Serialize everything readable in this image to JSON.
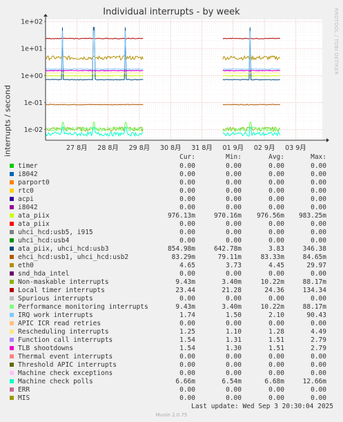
{
  "title": "Individual interrupts - by week",
  "watermark": "RRDTOOL / TOBI OETIKER",
  "footer": {
    "last_update": "Last update: Wed Sep  3 20:30:04 2025",
    "version": "Munin 2.0.75"
  },
  "legend_headers": {
    "cur": "Cur:",
    "min": "Min:",
    "avg": "Avg:",
    "max": "Max:"
  },
  "chart_data": {
    "type": "line",
    "title": "Individual interrupts - by week",
    "ylabel": "interrupts / second",
    "yscale": "log",
    "ylim": [
      0.004,
      120
    ],
    "y_ticks": [
      {
        "value": 100,
        "label": "1e+02"
      },
      {
        "value": 10,
        "label": "1e+01"
      },
      {
        "value": 1,
        "label": "1e+00"
      },
      {
        "value": 0.1,
        "label": "1e-01"
      },
      {
        "value": 0.01,
        "label": "1e-02"
      }
    ],
    "x_domain_days": [
      0,
      7.5
    ],
    "x_ticks": [
      {
        "day": 1,
        "label": "27 8月"
      },
      {
        "day": 2,
        "label": "28 8月"
      },
      {
        "day": 3,
        "label": "29 8月"
      },
      {
        "day": 4,
        "label": "30 8月"
      },
      {
        "day": 5,
        "label": "31 8月"
      },
      {
        "day": 6,
        "label": "01 9月"
      },
      {
        "day": 7,
        "label": "02 9月"
      },
      {
        "day": 8,
        "label": "03 9月"
      }
    ],
    "data_gaps": [
      [
        3.12,
        5.65
      ]
    ],
    "grid": true,
    "series": [
      {
        "name": "timer",
        "color": "#00cc00",
        "cur": "0.00",
        "min": "0.00",
        "avg": "0.00",
        "max": "0.00"
      },
      {
        "name": "i8042",
        "color": "#0066b3",
        "cur": "0.00",
        "min": "0.00",
        "avg": "0.00",
        "max": "0.00"
      },
      {
        "name": "parport0",
        "color": "#ff8000",
        "cur": "0.00",
        "min": "0.00",
        "avg": "0.00",
        "max": "0.00"
      },
      {
        "name": "rtc0",
        "color": "#ffcc00",
        "cur": "0.00",
        "min": "0.00",
        "avg": "0.00",
        "max": "0.00"
      },
      {
        "name": "acpi",
        "color": "#330099",
        "cur": "0.00",
        "min": "0.00",
        "avg": "0.00",
        "max": "0.00"
      },
      {
        "name": "i8042",
        "color": "#990099",
        "cur": "0.00",
        "min": "0.00",
        "avg": "0.00",
        "max": "0.00"
      },
      {
        "name": "ata_piix",
        "color": "#ccff00",
        "cur": "976.13m",
        "min": "970.16m",
        "avg": "976.56m",
        "max": "983.25m",
        "level": 0.976
      },
      {
        "name": "ata_piix",
        "color": "#ff0000",
        "cur": "0.00",
        "min": "0.00",
        "avg": "0.00",
        "max": "0.00"
      },
      {
        "name": "uhci_hcd:usb5, i915",
        "color": "#808080",
        "cur": "0.00",
        "min": "0.00",
        "avg": "0.00",
        "max": "0.00"
      },
      {
        "name": "uhci_hcd:usb4",
        "color": "#008f00",
        "cur": "0.00",
        "min": "0.00",
        "avg": "0.00",
        "max": "0.00"
      },
      {
        "name": "ata_piix, uhci_hcd:usb3",
        "color": "#00487d",
        "cur": "854.98m",
        "min": "642.78m",
        "avg": "3.83",
        "max": "346.38",
        "level": 0.7,
        "spike": 60
      },
      {
        "name": "ehci_hcd:usb1, uhci_hcd:usb2",
        "color": "#b35a00",
        "cur": "83.29m",
        "min": "79.11m",
        "avg": "83.33m",
        "max": "84.65m",
        "level": 0.0833
      },
      {
        "name": "eth0",
        "color": "#b38f00",
        "cur": "4.65",
        "min": "3.73",
        "avg": "4.45",
        "max": "29.97",
        "level": 4.45
      },
      {
        "name": "snd_hda_intel",
        "color": "#6b006b",
        "cur": "0.00",
        "min": "0.00",
        "avg": "0.00",
        "max": "0.00"
      },
      {
        "name": "Non-maskable interrupts",
        "color": "#8fb300",
        "cur": "9.43m",
        "min": "3.40m",
        "avg": "10.22m",
        "max": "88.17m",
        "level": 0.0102
      },
      {
        "name": "Local timer interrupts",
        "color": "#b30000",
        "cur": "23.44",
        "min": "21.28",
        "avg": "24.36",
        "max": "134.34",
        "level": 23.4
      },
      {
        "name": "Spurious interrupts",
        "color": "#bebebe",
        "cur": "0.00",
        "min": "0.00",
        "avg": "0.00",
        "max": "0.00"
      },
      {
        "name": "Performance monitoring interrupts",
        "color": "#80ff80",
        "cur": "9.43m",
        "min": "3.40m",
        "avg": "10.22m",
        "max": "88.17m",
        "level": 0.0102
      },
      {
        "name": "IRQ work interrupts",
        "color": "#80c9ff",
        "cur": "1.74",
        "min": "1.50",
        "avg": "2.10",
        "max": "90.43",
        "level": 1.74,
        "spike": 45
      },
      {
        "name": "APIC ICR read retries",
        "color": "#ffc080",
        "cur": "0.00",
        "min": "0.00",
        "avg": "0.00",
        "max": "0.00"
      },
      {
        "name": "Rescheduling interrupts",
        "color": "#ffe680",
        "cur": "1.25",
        "min": "1.10",
        "avg": "1.28",
        "max": "4.49",
        "level": 1.25
      },
      {
        "name": "Function call interrupts",
        "color": "#aa80ff",
        "cur": "1.54",
        "min": "1.31",
        "avg": "1.51",
        "max": "2.79",
        "level": 1.54
      },
      {
        "name": "TLB shootdowns",
        "color": "#ee00cc",
        "cur": "1.54",
        "min": "1.30",
        "avg": "1.51",
        "max": "2.79",
        "level": 1.51
      },
      {
        "name": "Thermal event interrupts",
        "color": "#ff8080",
        "cur": "0.00",
        "min": "0.00",
        "avg": "0.00",
        "max": "0.00"
      },
      {
        "name": "Threshold APIC interrupts",
        "color": "#666600",
        "cur": "0.00",
        "min": "0.00",
        "avg": "0.00",
        "max": "0.00"
      },
      {
        "name": "Machine check exceptions",
        "color": "#ffbfff",
        "cur": "0.00",
        "min": "0.00",
        "avg": "0.00",
        "max": "0.00"
      },
      {
        "name": "Machine check polls",
        "color": "#00ffcc",
        "cur": "6.66m",
        "min": "6.54m",
        "avg": "6.68m",
        "max": "12.66m",
        "level": 0.00668
      },
      {
        "name": "ERR",
        "color": "#cc6699",
        "cur": "0.00",
        "min": "0.00",
        "avg": "0.00",
        "max": "0.00"
      },
      {
        "name": "MIS",
        "color": "#999900",
        "cur": "0.00",
        "min": "0.00",
        "avg": "0.00",
        "max": "0.00"
      }
    ]
  }
}
